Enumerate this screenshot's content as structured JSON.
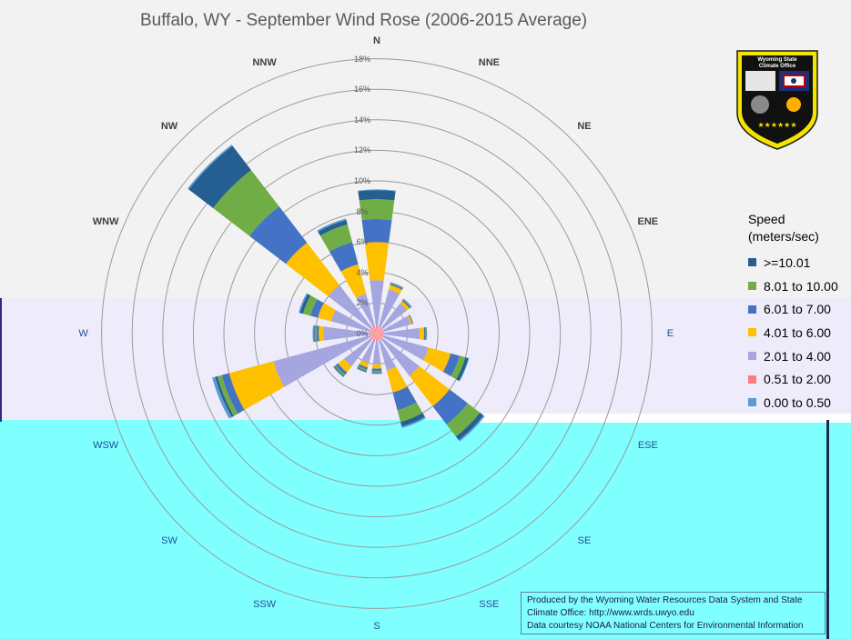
{
  "title": "Buffalo, WY - September Wind Rose (2006-2015 Average)",
  "chart_data": {
    "type": "wind-rose",
    "title": "Buffalo, WY - September Wind Rose (2006-2015 Average)",
    "radial_unit": "%",
    "rmax": 18,
    "ring_labels": [
      "0%",
      "2%",
      "4%",
      "6%",
      "8%",
      "10%",
      "12%",
      "14%",
      "16%",
      "18%"
    ],
    "directions": [
      "N",
      "NNE",
      "NE",
      "ENE",
      "E",
      "ESE",
      "SE",
      "SSE",
      "S",
      "SSW",
      "SW",
      "WSW",
      "W",
      "WNW",
      "NW",
      "NNW"
    ],
    "speed_bins": [
      ">=10.01",
      "8.01 to 10.00",
      "6.01 to 7.00",
      "4.01 to 6.00",
      "2.01 to 4.00",
      "0.51 to 2.00",
      "0.00 to 0.50"
    ],
    "bin_colors": [
      "#255e91",
      "#70ad47",
      "#4472c4",
      "#ffc000",
      "#a5a5e0",
      "#ff7c80",
      "#5b9bd5"
    ],
    "series": [
      {
        "name": "0.51 to 2.00",
        "values": [
          0.5,
          0.5,
          0.5,
          0.5,
          0.5,
          0.5,
          0.5,
          0.5,
          0.5,
          0.5,
          0.5,
          0.5,
          0.5,
          0.5,
          0.5,
          0.5
        ]
      },
      {
        "name": "2.01 to 4.00",
        "values": [
          3.0,
          2.5,
          2.0,
          1.8,
          2.3,
          3.0,
          3.0,
          2.0,
          1.5,
          1.5,
          2.2,
          6.5,
          3.0,
          2.6,
          3.5,
          2.2
        ]
      },
      {
        "name": "4.01 to 6.00",
        "values": [
          2.5,
          0.3,
          0.2,
          0.1,
          0.3,
          1.5,
          2.5,
          1.5,
          0.3,
          0.3,
          0.5,
          3.0,
          0.3,
          0.9,
          3.5,
          2.0
        ]
      },
      {
        "name": "6.01 to 7.00",
        "values": [
          1.5,
          0.1,
          0.1,
          0.05,
          0.1,
          0.6,
          1.5,
          1.2,
          0.15,
          0.15,
          0.2,
          0.5,
          0.15,
          0.5,
          3.0,
          1.5
        ]
      },
      {
        "name": "8.01 to 10.00",
        "values": [
          1.3,
          0.05,
          0.05,
          0.02,
          0.05,
          0.4,
          1.0,
          0.8,
          0.1,
          0.1,
          0.1,
          0.3,
          0.1,
          0.5,
          3.0,
          1.2
        ]
      },
      {
        "name": ">=10.01",
        "values": [
          0.6,
          0.02,
          0.02,
          0.01,
          0.02,
          0.2,
          0.3,
          0.3,
          0.05,
          0.05,
          0.05,
          0.15,
          0.05,
          0.2,
          2.0,
          0.3
        ]
      },
      {
        "name": "0.00 to 0.50",
        "values": [
          0.05,
          0.02,
          0.02,
          0.01,
          0.02,
          0.05,
          0.1,
          0.1,
          0.05,
          0.05,
          0.05,
          0.2,
          0.1,
          0.1,
          0.1,
          0.1
        ]
      }
    ]
  },
  "legend": {
    "title_line1": "Speed",
    "title_line2": "(meters/sec)",
    "items": [
      {
        "label": ">=10.01",
        "color": "#255e91"
      },
      {
        "label": "8.01 to 10.00",
        "color": "#70ad47"
      },
      {
        "label": "6.01 to 7.00",
        "color": "#4472c4"
      },
      {
        "label": "4.01 to 6.00",
        "color": "#ffc000"
      },
      {
        "label": "2.01 to 4.00",
        "color": "#a5a5e0"
      },
      {
        "label": "0.51 to 2.00",
        "color": "#ff7c80"
      },
      {
        "label": "0.00 to 0.50",
        "color": "#5b9bd5"
      }
    ]
  },
  "badge": {
    "line1": "Wyoming State",
    "line2": "Climate Office",
    "stars": "★★★★★★"
  },
  "credit": {
    "line1": "Produced by the Wyoming Water Resources Data System and State",
    "line2": "Climate Office: http://www.wrds.uwyo.edu",
    "line3": "Data courtesy NOAA National Centers for Environmental Information"
  }
}
